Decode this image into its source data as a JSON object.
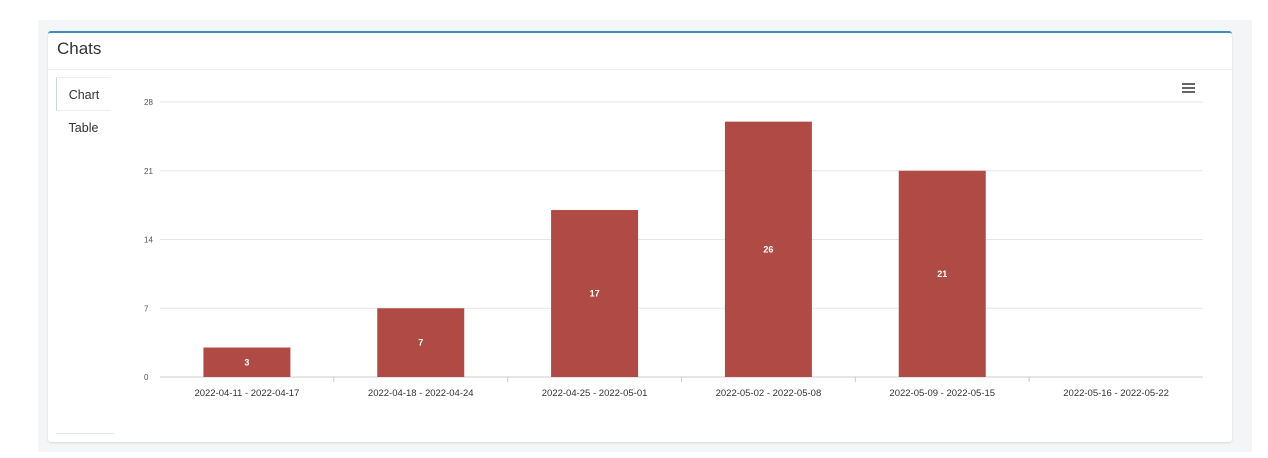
{
  "panel": {
    "title": "Chats"
  },
  "tabs": [
    {
      "label": "Chart",
      "active": true
    },
    {
      "label": "Table",
      "active": false
    }
  ],
  "menu": {
    "icon": "hamburger-menu-icon"
  },
  "colors": {
    "bar": "#b04a45",
    "accent": "#3c8dbc"
  },
  "chart_data": {
    "type": "bar",
    "title": "",
    "xlabel": "",
    "ylabel": "",
    "categories": [
      "2022-04-11 - 2022-04-17",
      "2022-04-18 - 2022-04-24",
      "2022-04-25 - 2022-05-01",
      "2022-05-02 - 2022-05-08",
      "2022-05-09 - 2022-05-15",
      "2022-05-16 - 2022-05-22"
    ],
    "values": [
      3,
      7,
      17,
      26,
      21,
      0
    ],
    "data_labels": [
      "3",
      "7",
      "17",
      "26",
      "21",
      ""
    ],
    "ylim": [
      0,
      28
    ],
    "yticks": [
      0,
      7,
      14,
      21,
      28
    ],
    "grid": true,
    "legend": "none"
  }
}
